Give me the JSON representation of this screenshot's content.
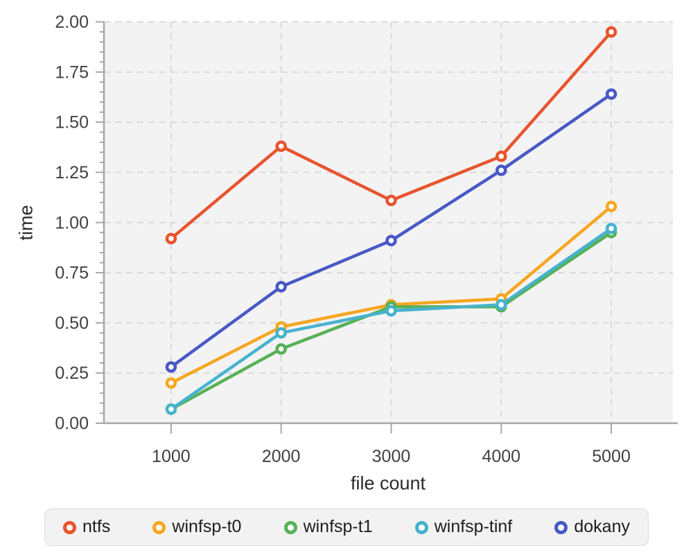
{
  "chart_data": {
    "type": "line",
    "title": "",
    "xlabel": "file count",
    "ylabel": "time",
    "x": [
      1000,
      2000,
      3000,
      4000,
      5000
    ],
    "series": [
      {
        "name": "ntfs",
        "color": "#e8542e",
        "values": [
          0.92,
          1.38,
          1.11,
          1.33,
          1.95
        ]
      },
      {
        "name": "winfsp-t0",
        "color": "#f6a620",
        "values": [
          0.2,
          0.48,
          0.59,
          0.62,
          1.08
        ]
      },
      {
        "name": "winfsp-t1",
        "color": "#57b156",
        "values": [
          0.07,
          0.37,
          0.58,
          0.58,
          0.95
        ]
      },
      {
        "name": "winfsp-tinf",
        "color": "#47b2cd",
        "values": [
          0.07,
          0.45,
          0.56,
          0.59,
          0.97
        ]
      },
      {
        "name": "dokany",
        "color": "#4858c6",
        "values": [
          0.28,
          0.68,
          0.91,
          1.26,
          1.64
        ]
      }
    ],
    "xlim": [
      390,
      5560
    ],
    "ylim": [
      0,
      2
    ],
    "x_ticks": [
      1000,
      2000,
      3000,
      4000,
      5000
    ],
    "x_tick_labels": [
      "1000",
      "2000",
      "3000",
      "4000",
      "5000"
    ],
    "y_ticks": [
      0.0,
      0.25,
      0.5,
      0.75,
      1.0,
      1.25,
      1.5,
      1.75,
      2.0
    ],
    "y_tick_labels": [
      "0.00",
      "0.25",
      "0.50",
      "0.75",
      "1.00",
      "1.25",
      "1.50",
      "1.75",
      "2.00"
    ],
    "y_minor_tick_step": 0.05,
    "grid": true,
    "grid_style": "dashed",
    "legend_position": "bottom",
    "legend": [
      "ntfs",
      "winfsp-t0",
      "winfsp-t1",
      "winfsp-tinf",
      "dokany"
    ],
    "marker": "open-circle",
    "plot_bg_color": "#f3f3f3",
    "grid_color": "#d9d9d9",
    "axis_color": "#a6a6a6",
    "tick_label_color": "#414141",
    "axis_title_color": "#2b2b2b"
  }
}
